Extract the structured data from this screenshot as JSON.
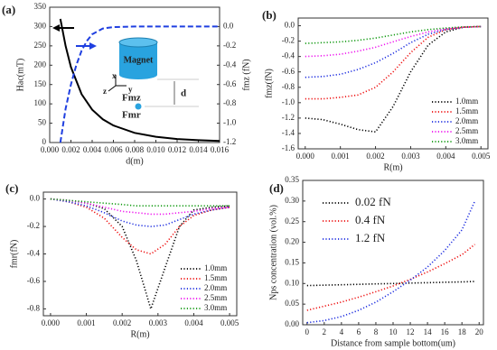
{
  "chart_data": [
    {
      "type": "line",
      "label": "(a)",
      "x_label": "d(m)",
      "y_label": "Hac(mT)",
      "y2_label": "fmz (fN)",
      "xlim": [
        0,
        0.016
      ],
      "xticks": [
        {
          "value": 0,
          "label": "0.000"
        },
        0.002,
        0.004,
        0.006,
        0.008,
        {
          "value": 0.01,
          "label": "0.010"
        },
        0.012,
        0.014,
        0.016
      ],
      "ylim": [
        0,
        350
      ],
      "yticks": [
        0,
        50,
        100,
        150,
        200,
        250,
        300,
        350
      ],
      "y2lim": [
        -1.2,
        0.2
      ],
      "y2ticks": [
        {
          "value": 0,
          "label": "0.0"
        },
        -0.2,
        -0.4,
        -0.6,
        -0.8,
        {
          "value": -1,
          "label": "-1.0"
        },
        -1.2
      ],
      "annotations": [
        "Magnet",
        "x",
        "y",
        "z",
        "d",
        "Fmz",
        "Fmr"
      ],
      "series": [
        {
          "color": "#000000",
          "line_style": "solid",
          "x": [
            0.001,
            0.0015,
            0.002,
            0.003,
            0.004,
            0.005,
            0.006,
            0.008,
            0.01,
            0.012,
            0.014,
            0.016
          ],
          "values": [
            320,
            250,
            195,
            125,
            85,
            60,
            44,
            25,
            15,
            9,
            6,
            4
          ]
        },
        {
          "color": "#1f3fe0",
          "line_style": "dashed",
          "axis": "y2",
          "x": [
            0.001,
            0.0015,
            0.002,
            0.0025,
            0.003,
            0.0035,
            0.004,
            0.005,
            0.006,
            0.008,
            0.01,
            0.012,
            0.014,
            0.016
          ],
          "values": [
            -1.2,
            -0.85,
            -0.6,
            -0.4,
            -0.25,
            -0.15,
            -0.08,
            -0.02,
            -0.005,
            0,
            0,
            0,
            0,
            0
          ]
        }
      ]
    },
    {
      "type": "line",
      "label": "(b)",
      "x_label": "R(m)",
      "y_label": "fmz(fN)",
      "legend": "lower right",
      "xlim": [
        -0.0002,
        0.0052
      ],
      "xticks": [
        {
          "value": 0,
          "label": "0.000"
        },
        0.001,
        0.002,
        0.003,
        0.004,
        0.005
      ],
      "ylim": [
        -1.6,
        0.1
      ],
      "yticks": [
        {
          "value": 0,
          "label": "0.0"
        },
        -0.2,
        -0.4,
        -0.6,
        -0.8,
        {
          "value": -1,
          "label": "-1.0"
        },
        -1.2,
        -1.4,
        -1.6
      ],
      "x": [
        0,
        0.0005,
        0.001,
        0.0015,
        0.002,
        0.0025,
        0.003,
        0.0035,
        0.004,
        0.0045,
        0.005
      ],
      "series": [
        {
          "name": "1.0mm",
          "color": "#000000",
          "line_style": "dotted",
          "values": [
            -1.2,
            -1.22,
            -1.28,
            -1.35,
            -1.38,
            -1.05,
            -0.6,
            -0.25,
            -0.08,
            -0.02,
            -0.01
          ]
        },
        {
          "name": "1.5mm",
          "color": "#ee1111",
          "line_style": "dotted",
          "values": [
            -0.95,
            -0.95,
            -0.93,
            -0.9,
            -0.8,
            -0.6,
            -0.35,
            -0.15,
            -0.05,
            -0.02,
            -0.01
          ]
        },
        {
          "name": "2.0mm",
          "color": "#1f2fe0",
          "line_style": "dotted",
          "values": [
            -0.67,
            -0.66,
            -0.63,
            -0.57,
            -0.48,
            -0.36,
            -0.22,
            -0.11,
            -0.05,
            -0.02,
            -0.01
          ]
        },
        {
          "name": "2.5mm",
          "color": "#ee11ee",
          "line_style": "dotted",
          "values": [
            -0.4,
            -0.39,
            -0.37,
            -0.33,
            -0.28,
            -0.21,
            -0.14,
            -0.08,
            -0.04,
            -0.02,
            -0.01
          ]
        },
        {
          "name": "3.0mm",
          "color": "#119911",
          "line_style": "dotted",
          "values": [
            -0.23,
            -0.22,
            -0.21,
            -0.19,
            -0.16,
            -0.12,
            -0.08,
            -0.05,
            -0.03,
            -0.015,
            -0.01
          ]
        }
      ]
    },
    {
      "type": "line",
      "label": "(c)",
      "x_label": "R(m)",
      "y_label": "fmr(fN)",
      "legend": "lower right",
      "xlim": [
        -0.0002,
        0.0052
      ],
      "xticks": [
        {
          "value": 0,
          "label": "0.000"
        },
        0.001,
        0.002,
        0.003,
        0.004,
        0.005
      ],
      "ylim": [
        -0.85,
        0.05
      ],
      "yticks": [
        {
          "value": 0,
          "label": "0.0"
        },
        -0.2,
        -0.4,
        -0.6,
        -0.8
      ],
      "x": [
        0,
        0.0005,
        0.001,
        0.0015,
        0.002,
        0.0024,
        0.0028,
        0.0032,
        0.0036,
        0.004,
        0.0045,
        0.005
      ],
      "series": [
        {
          "name": "1.0mm",
          "color": "#000000",
          "line_style": "dotted",
          "values": [
            0,
            -0.01,
            -0.03,
            -0.07,
            -0.2,
            -0.45,
            -0.8,
            -0.5,
            -0.2,
            -0.08,
            -0.06,
            -0.05
          ]
        },
        {
          "name": "1.5mm",
          "color": "#ee1111",
          "line_style": "dotted",
          "values": [
            0,
            -0.02,
            -0.06,
            -0.14,
            -0.28,
            -0.37,
            -0.4,
            -0.33,
            -0.2,
            -0.12,
            -0.08,
            -0.06
          ]
        },
        {
          "name": "2.0mm",
          "color": "#1f2fe0",
          "line_style": "dotted",
          "values": [
            0,
            -0.02,
            -0.05,
            -0.1,
            -0.16,
            -0.19,
            -0.2,
            -0.19,
            -0.15,
            -0.11,
            -0.08,
            -0.06
          ]
        },
        {
          "name": "2.5mm",
          "color": "#ee11ee",
          "line_style": "dotted",
          "values": [
            0,
            -0.01,
            -0.03,
            -0.06,
            -0.09,
            -0.1,
            -0.11,
            -0.11,
            -0.1,
            -0.09,
            -0.07,
            -0.06
          ]
        },
        {
          "name": "3.0mm",
          "color": "#119911",
          "line_style": "dotted",
          "values": [
            0,
            -0.01,
            -0.02,
            -0.03,
            -0.04,
            -0.05,
            -0.05,
            -0.05,
            -0.05,
            -0.05,
            -0.05,
            -0.05
          ]
        }
      ]
    },
    {
      "type": "line",
      "label": "(d)",
      "x_label": "Distance from sample bottom(um)",
      "y_label": "Nps concentration (vol.%)",
      "legend": "upper left",
      "xlim": [
        -0.5,
        20.5
      ],
      "xticks": [
        0,
        2,
        4,
        6,
        8,
        10,
        12,
        14,
        16,
        18,
        20
      ],
      "ylim": [
        0,
        0.35
      ],
      "yticks": [
        {
          "value": 0,
          "label": "0.00"
        },
        0.05,
        {
          "value": 0.1,
          "label": "0.10"
        },
        0.15,
        {
          "value": 0.2,
          "label": "0.20"
        },
        0.25,
        {
          "value": 0.3,
          "label": "0.30"
        },
        0.35
      ],
      "x": [
        0,
        2,
        4,
        6,
        8,
        10,
        12,
        14,
        16,
        18,
        19.5
      ],
      "series": [
        {
          "name": "0.02 fN",
          "color": "#000000",
          "line_style": "dotted",
          "values": [
            0.095,
            0.096,
            0.097,
            0.098,
            0.099,
            0.1,
            0.101,
            0.102,
            0.103,
            0.104,
            0.105
          ]
        },
        {
          "name": "0.4 fN",
          "color": "#ee1111",
          "line_style": "dotted",
          "values": [
            0.035,
            0.045,
            0.055,
            0.067,
            0.08,
            0.094,
            0.11,
            0.128,
            0.148,
            0.17,
            0.195
          ]
        },
        {
          "name": "1.2 fN",
          "color": "#1f2fe0",
          "line_style": "dotted",
          "values": [
            0.005,
            0.01,
            0.02,
            0.035,
            0.055,
            0.08,
            0.108,
            0.14,
            0.18,
            0.23,
            0.3
          ]
        }
      ]
    }
  ]
}
